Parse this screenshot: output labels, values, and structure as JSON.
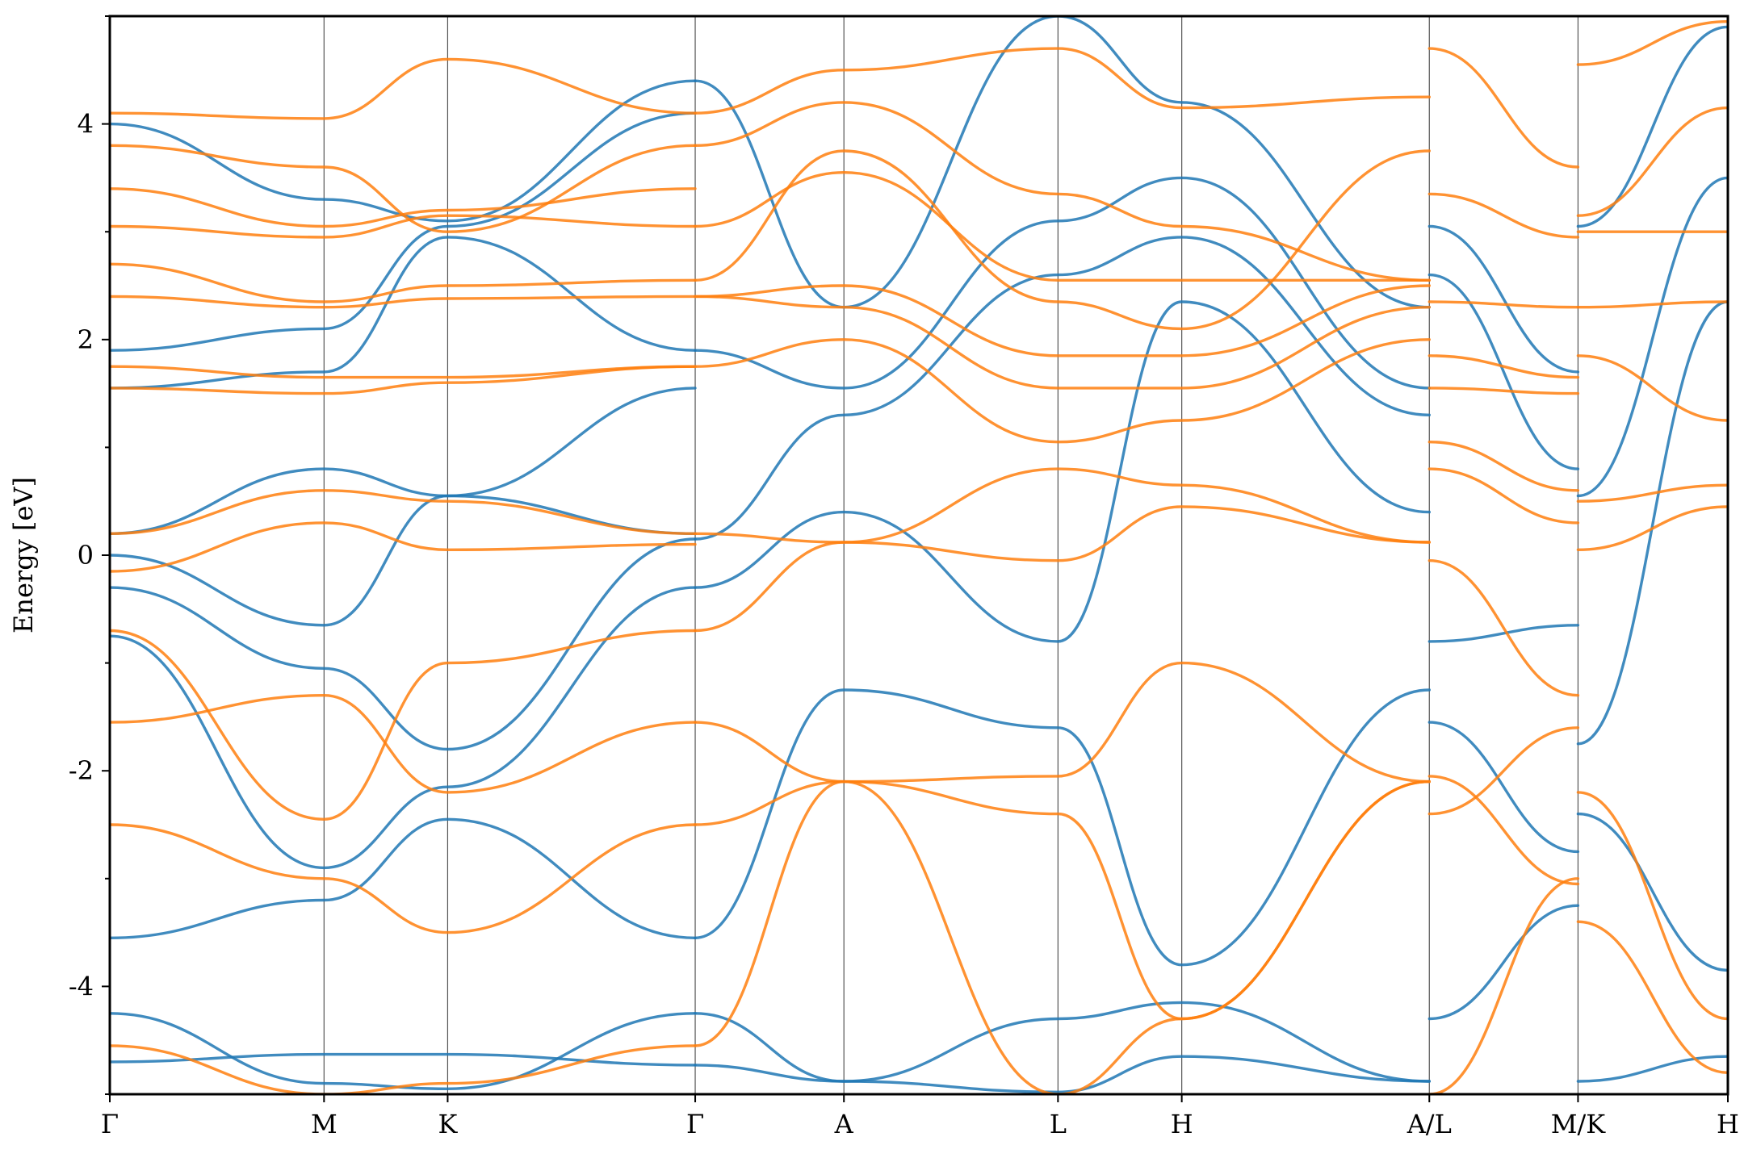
{
  "chart_data": {
    "type": "line",
    "title": "",
    "xlabel": "",
    "ylabel": "Energy [eV]",
    "ylim": [
      -5,
      5
    ],
    "y_ticks": [
      -4,
      -2,
      0,
      2,
      4
    ],
    "y_tick_labels": [
      "-4",
      "-2",
      "0",
      "2",
      "4"
    ],
    "grid": false,
    "legend": "none",
    "k_points": [
      {
        "label": "Γ",
        "x": 0.0
      },
      {
        "label": "M",
        "x": 0.1324
      },
      {
        "label": "K",
        "x": 0.2088
      },
      {
        "label": "Γ",
        "x": 0.3618
      },
      {
        "label": "A",
        "x": 0.4537
      },
      {
        "label": "L",
        "x": 0.586
      },
      {
        "label": "H",
        "x": 0.6625
      },
      {
        "label": "A/L",
        "x": 0.8155
      },
      {
        "label": "M/K",
        "x": 0.9074
      },
      {
        "label": "H",
        "x": 1.0
      }
    ],
    "series_colors": {
      "spin_up": "#1f77b4",
      "spin_down": "#ff7f0e"
    },
    "series": [
      {
        "color": "#1f77b4",
        "x": [
          0.0,
          0.1324,
          0.2088,
          0.3618
        ],
        "values": [
          -4.7,
          -4.63,
          -4.63,
          -4.73
        ]
      },
      {
        "color": "#1f77b4",
        "x": [
          0.0,
          0.1324,
          0.2088,
          0.3618
        ],
        "values": [
          -4.25,
          -4.9,
          -4.95,
          -4.25
        ]
      },
      {
        "color": "#1f77b4",
        "x": [
          0.0,
          0.1324,
          0.2088,
          0.3618
        ],
        "values": [
          -3.55,
          -3.2,
          -2.45,
          -3.55
        ]
      },
      {
        "color": "#1f77b4",
        "x": [
          0.0,
          0.1324,
          0.2088,
          0.3618
        ],
        "values": [
          -0.75,
          -2.9,
          -2.15,
          -0.3
        ]
      },
      {
        "color": "#1f77b4",
        "x": [
          0.0,
          0.1324,
          0.2088,
          0.3618
        ],
        "values": [
          -0.3,
          -1.05,
          -1.8,
          0.15
        ]
      },
      {
        "color": "#1f77b4",
        "x": [
          0.0,
          0.1324,
          0.2088,
          0.3618
        ],
        "values": [
          0.0,
          -0.65,
          0.55,
          0.2
        ]
      },
      {
        "color": "#1f77b4",
        "x": [
          0.0,
          0.1324,
          0.2088,
          0.3618
        ],
        "values": [
          0.2,
          0.8,
          0.55,
          1.55
        ]
      },
      {
        "color": "#1f77b4",
        "x": [
          0.0,
          0.1324,
          0.2088,
          0.3618
        ],
        "values": [
          1.55,
          1.7,
          2.95,
          1.9
        ]
      },
      {
        "color": "#1f77b4",
        "x": [
          0.0,
          0.1324,
          0.2088,
          0.3618
        ],
        "values": [
          1.9,
          2.1,
          3.05,
          4.1
        ]
      },
      {
        "color": "#1f77b4",
        "x": [
          0.0,
          0.1324,
          0.2088,
          0.3618
        ],
        "values": [
          4.0,
          3.3,
          3.1,
          4.4
        ]
      },
      {
        "color": "#1f77b4",
        "x": [
          0.3618,
          0.4537,
          0.586,
          0.6625,
          0.8155
        ],
        "values": [
          -4.73,
          -4.88,
          -4.98,
          -4.65,
          -4.88
        ]
      },
      {
        "color": "#1f77b4",
        "x": [
          0.3618,
          0.4537,
          0.586,
          0.6625,
          0.8155
        ],
        "values": [
          -4.25,
          -4.88,
          -4.3,
          -4.15,
          -4.88
        ]
      },
      {
        "color": "#1f77b4",
        "x": [
          0.3618,
          0.4537,
          0.586,
          0.6625,
          0.8155
        ],
        "values": [
          -3.55,
          -1.25,
          -1.6,
          -3.8,
          -1.25
        ]
      },
      {
        "color": "#1f77b4",
        "x": [
          0.3618,
          0.4537,
          0.586,
          0.6625,
          0.8155
        ],
        "values": [
          -0.3,
          0.4,
          -0.8,
          2.35,
          0.4
        ]
      },
      {
        "color": "#1f77b4",
        "x": [
          0.3618,
          0.4537,
          0.586,
          0.6625,
          0.8155
        ],
        "values": [
          0.15,
          1.3,
          2.6,
          2.95,
          1.3
        ]
      },
      {
        "color": "#1f77b4",
        "x": [
          0.3618,
          0.4537,
          0.586,
          0.6625,
          0.8155
        ],
        "values": [
          1.9,
          1.55,
          3.1,
          3.5,
          1.55
        ]
      },
      {
        "color": "#1f77b4",
        "x": [
          0.3618,
          0.4537,
          0.586,
          0.6625,
          0.8155
        ],
        "values": [
          4.4,
          2.3,
          5.0,
          4.2,
          2.3
        ]
      },
      {
        "color": "#1f77b4",
        "x": [
          0.8155,
          0.9074
        ],
        "values": [
          -4.3,
          -3.25
        ]
      },
      {
        "color": "#1f77b4",
        "x": [
          0.8155,
          0.9074
        ],
        "values": [
          -1.55,
          -2.75
        ]
      },
      {
        "color": "#1f77b4",
        "x": [
          0.8155,
          0.9074
        ],
        "values": [
          -0.8,
          -0.65
        ]
      },
      {
        "color": "#1f77b4",
        "x": [
          0.8155,
          0.9074
        ],
        "values": [
          2.6,
          0.8
        ]
      },
      {
        "color": "#1f77b4",
        "x": [
          0.8155,
          0.9074
        ],
        "values": [
          3.05,
          1.7
        ]
      },
      {
        "color": "#1f77b4",
        "x": [
          0.9074,
          1.0
        ],
        "values": [
          -4.88,
          -4.65
        ]
      },
      {
        "color": "#1f77b4",
        "x": [
          0.9074,
          1.0
        ],
        "values": [
          -1.75,
          2.35
        ]
      },
      {
        "color": "#1f77b4",
        "x": [
          0.9074,
          1.0
        ],
        "values": [
          -2.4,
          -3.85
        ]
      },
      {
        "color": "#1f77b4",
        "x": [
          0.9074,
          1.0
        ],
        "values": [
          0.55,
          3.5
        ]
      },
      {
        "color": "#1f77b4",
        "x": [
          0.9074,
          1.0
        ],
        "values": [
          3.05,
          4.9
        ]
      },
      {
        "color": "#ff7f0e",
        "x": [
          0.0,
          0.1324,
          0.2088,
          0.3618
        ],
        "values": [
          -4.55,
          -5.0,
          -4.9,
          -4.55
        ]
      },
      {
        "color": "#ff7f0e",
        "x": [
          0.0,
          0.1324,
          0.2088,
          0.3618
        ],
        "values": [
          -2.5,
          -3.0,
          -3.5,
          -2.5
        ]
      },
      {
        "color": "#ff7f0e",
        "x": [
          0.0,
          0.1324,
          0.2088,
          0.3618
        ],
        "values": [
          -1.55,
          -1.3,
          -2.2,
          -1.55
        ]
      },
      {
        "color": "#ff7f0e",
        "x": [
          0.0,
          0.1324,
          0.2088,
          0.3618
        ],
        "values": [
          -0.7,
          -2.45,
          -1.0,
          -0.7
        ]
      },
      {
        "color": "#ff7f0e",
        "x": [
          0.0,
          0.1324,
          0.2088,
          0.3618
        ],
        "values": [
          -0.15,
          0.3,
          0.05,
          0.1
        ]
      },
      {
        "color": "#ff7f0e",
        "x": [
          0.0,
          0.1324,
          0.2088,
          0.3618
        ],
        "values": [
          0.2,
          0.6,
          0.5,
          0.2
        ]
      },
      {
        "color": "#ff7f0e",
        "x": [
          0.0,
          0.1324,
          0.2088,
          0.3618
        ],
        "values": [
          1.55,
          1.5,
          1.6,
          1.75
        ]
      },
      {
        "color": "#ff7f0e",
        "x": [
          0.0,
          0.1324,
          0.2088,
          0.3618
        ],
        "values": [
          1.75,
          1.65,
          1.65,
          1.75
        ]
      },
      {
        "color": "#ff7f0e",
        "x": [
          0.0,
          0.1324,
          0.2088,
          0.3618
        ],
        "values": [
          2.4,
          2.3,
          2.38,
          2.4
        ]
      },
      {
        "color": "#ff7f0e",
        "x": [
          0.0,
          0.1324,
          0.2088,
          0.3618
        ],
        "values": [
          2.7,
          2.35,
          2.5,
          2.55
        ]
      },
      {
        "color": "#ff7f0e",
        "x": [
          0.0,
          0.1324,
          0.2088,
          0.3618
        ],
        "values": [
          3.05,
          2.95,
          3.15,
          3.05
        ]
      },
      {
        "color": "#ff7f0e",
        "x": [
          0.0,
          0.1324,
          0.2088,
          0.3618
        ],
        "values": [
          3.4,
          3.05,
          3.2,
          3.4
        ]
      },
      {
        "color": "#ff7f0e",
        "x": [
          0.0,
          0.1324,
          0.2088,
          0.3618
        ],
        "values": [
          3.8,
          3.6,
          3.0,
          3.8
        ]
      },
      {
        "color": "#ff7f0e",
        "x": [
          0.0,
          0.1324,
          0.2088,
          0.3618
        ],
        "values": [
          4.1,
          4.05,
          4.6,
          4.1
        ]
      },
      {
        "color": "#ff7f0e",
        "x": [
          0.3618,
          0.4537,
          0.586,
          0.6625,
          0.8155
        ],
        "values": [
          -4.55,
          -2.1,
          -5.0,
          -4.3,
          -2.1
        ]
      },
      {
        "color": "#ff7f0e",
        "x": [
          0.3618,
          0.4537,
          0.586,
          0.6625,
          0.8155
        ],
        "values": [
          -2.5,
          -2.1,
          -2.4,
          -4.3,
          -2.1
        ]
      },
      {
        "color": "#ff7f0e",
        "x": [
          0.3618,
          0.4537,
          0.586,
          0.6625,
          0.8155
        ],
        "values": [
          -1.55,
          -2.1,
          -2.05,
          -1.0,
          -2.1
        ]
      },
      {
        "color": "#ff7f0e",
        "x": [
          0.3618,
          0.4537,
          0.586,
          0.6625,
          0.8155
        ],
        "values": [
          -0.7,
          0.12,
          -0.05,
          0.45,
          0.12
        ]
      },
      {
        "color": "#ff7f0e",
        "x": [
          0.3618,
          0.4537,
          0.586,
          0.6625,
          0.8155
        ],
        "values": [
          0.2,
          0.12,
          0.8,
          0.65,
          0.12
        ]
      },
      {
        "color": "#ff7f0e",
        "x": [
          0.3618,
          0.4537,
          0.586,
          0.6625,
          0.8155
        ],
        "values": [
          1.75,
          2.0,
          1.05,
          1.25,
          2.0
        ]
      },
      {
        "color": "#ff7f0e",
        "x": [
          0.3618,
          0.4537,
          0.586,
          0.6625,
          0.8155
        ],
        "values": [
          2.4,
          2.3,
          1.55,
          1.55,
          2.3
        ]
      },
      {
        "color": "#ff7f0e",
        "x": [
          0.3618,
          0.4537,
          0.586,
          0.6625,
          0.8155
        ],
        "values": [
          2.4,
          2.5,
          1.85,
          1.85,
          2.5
        ]
      },
      {
        "color": "#ff7f0e",
        "x": [
          0.3618,
          0.4537,
          0.586,
          0.6625,
          0.8155
        ],
        "values": [
          2.55,
          3.75,
          2.35,
          2.1,
          3.75
        ]
      },
      {
        "color": "#ff7f0e",
        "x": [
          0.3618,
          0.4537,
          0.586,
          0.6625,
          0.8155
        ],
        "values": [
          3.05,
          3.55,
          2.55,
          2.55,
          2.55
        ]
      },
      {
        "color": "#ff7f0e",
        "x": [
          0.3618,
          0.4537,
          0.586,
          0.6625,
          0.8155
        ],
        "values": [
          3.8,
          4.2,
          3.35,
          3.05,
          2.55
        ]
      },
      {
        "color": "#ff7f0e",
        "x": [
          0.3618,
          0.4537,
          0.586,
          0.6625,
          0.8155
        ],
        "values": [
          4.1,
          4.5,
          4.7,
          4.15,
          4.25
        ]
      },
      {
        "color": "#ff7f0e",
        "x": [
          0.8155,
          0.9074
        ],
        "values": [
          -5.0,
          -3.0
        ]
      },
      {
        "color": "#ff7f0e",
        "x": [
          0.8155,
          0.9074
        ],
        "values": [
          -2.05,
          -3.05
        ]
      },
      {
        "color": "#ff7f0e",
        "x": [
          0.8155,
          0.9074
        ],
        "values": [
          -2.4,
          -1.6
        ]
      },
      {
        "color": "#ff7f0e",
        "x": [
          0.8155,
          0.9074
        ],
        "values": [
          -0.05,
          -1.3
        ]
      },
      {
        "color": "#ff7f0e",
        "x": [
          0.8155,
          0.9074
        ],
        "values": [
          0.8,
          0.3
        ]
      },
      {
        "color": "#ff7f0e",
        "x": [
          0.8155,
          0.9074
        ],
        "values": [
          1.05,
          0.6
        ]
      },
      {
        "color": "#ff7f0e",
        "x": [
          0.8155,
          0.9074
        ],
        "values": [
          1.55,
          1.5
        ]
      },
      {
        "color": "#ff7f0e",
        "x": [
          0.8155,
          0.9074
        ],
        "values": [
          1.85,
          1.65
        ]
      },
      {
        "color": "#ff7f0e",
        "x": [
          0.8155,
          0.9074
        ],
        "values": [
          2.35,
          2.3
        ]
      },
      {
        "color": "#ff7f0e",
        "x": [
          0.8155,
          0.9074
        ],
        "values": [
          3.35,
          2.95
        ]
      },
      {
        "color": "#ff7f0e",
        "x": [
          0.8155,
          0.9074
        ],
        "values": [
          4.7,
          3.6
        ]
      },
      {
        "color": "#ff7f0e",
        "x": [
          0.9074,
          1.0
        ],
        "values": [
          -3.4,
          -4.8
        ]
      },
      {
        "color": "#ff7f0e",
        "x": [
          0.9074,
          1.0
        ],
        "values": [
          -2.2,
          -4.3
        ]
      },
      {
        "color": "#ff7f0e",
        "x": [
          0.9074,
          1.0
        ],
        "values": [
          0.05,
          0.45
        ]
      },
      {
        "color": "#ff7f0e",
        "x": [
          0.9074,
          1.0
        ],
        "values": [
          0.5,
          0.65
        ]
      },
      {
        "color": "#ff7f0e",
        "x": [
          0.9074,
          1.0
        ],
        "values": [
          1.85,
          1.25
        ]
      },
      {
        "color": "#ff7f0e",
        "x": [
          0.9074,
          1.0
        ],
        "values": [
          2.3,
          2.35
        ]
      },
      {
        "color": "#ff7f0e",
        "x": [
          0.9074,
          1.0
        ],
        "values": [
          3.0,
          3.0
        ]
      },
      {
        "color": "#ff7f0e",
        "x": [
          0.9074,
          1.0
        ],
        "values": [
          3.15,
          4.15
        ]
      },
      {
        "color": "#ff7f0e",
        "x": [
          0.9074,
          1.0
        ],
        "values": [
          4.55,
          4.95
        ]
      }
    ]
  }
}
